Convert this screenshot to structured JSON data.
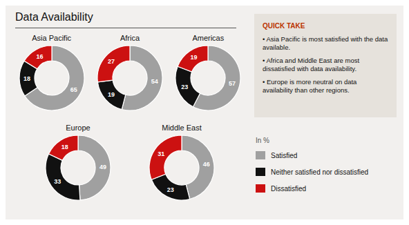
{
  "title": "Data Availability",
  "legend_title": "In %",
  "annotations": [
    "QUICK TAKE",
    "• Asia Pacific is most satisfied with the data available.",
    "• Africa and Middle East are most dissatisfied with data availability.",
    "• Europe is more neutral on data availability than other regions."
  ],
  "chart_data": [
    {
      "type": "pie",
      "title": "Asia Pacific",
      "categories": [
        "Satisfied",
        "Neither satisfied nor dissatisfied",
        "Dissatisfied"
      ],
      "values": [
        65,
        18,
        16
      ],
      "colors": [
        "#a0a0a0",
        "#111111",
        "#cc1111"
      ],
      "data_labels": true
    },
    {
      "type": "pie",
      "title": "Africa",
      "categories": [
        "Satisfied",
        "Neither satisfied nor dissatisfied",
        "Dissatisfied"
      ],
      "values": [
        54,
        19,
        27
      ],
      "colors": [
        "#a0a0a0",
        "#111111",
        "#cc1111"
      ],
      "data_labels": true
    },
    {
      "type": "pie",
      "title": "Americas",
      "categories": [
        "Satisfied",
        "Neither satisfied nor dissatisfied",
        "Dissatisfied"
      ],
      "values": [
        57,
        23,
        19
      ],
      "colors": [
        "#a0a0a0",
        "#111111",
        "#cc1111"
      ],
      "data_labels": true
    },
    {
      "type": "pie",
      "title": "Europe",
      "categories": [
        "Satisfied",
        "Neither satisfied nor dissatisfied",
        "Dissatisfied"
      ],
      "values": [
        49,
        33,
        18
      ],
      "colors": [
        "#a0a0a0",
        "#111111",
        "#cc1111"
      ],
      "data_labels": true
    },
    {
      "type": "pie",
      "title": "Middle East",
      "categories": [
        "Satisfied",
        "Neither satisfied nor dissatisfied",
        "Dissatisfied"
      ],
      "values": [
        46,
        23,
        31
      ],
      "colors": [
        "#a0a0a0",
        "#111111",
        "#cc1111"
      ],
      "data_labels": true
    }
  ]
}
